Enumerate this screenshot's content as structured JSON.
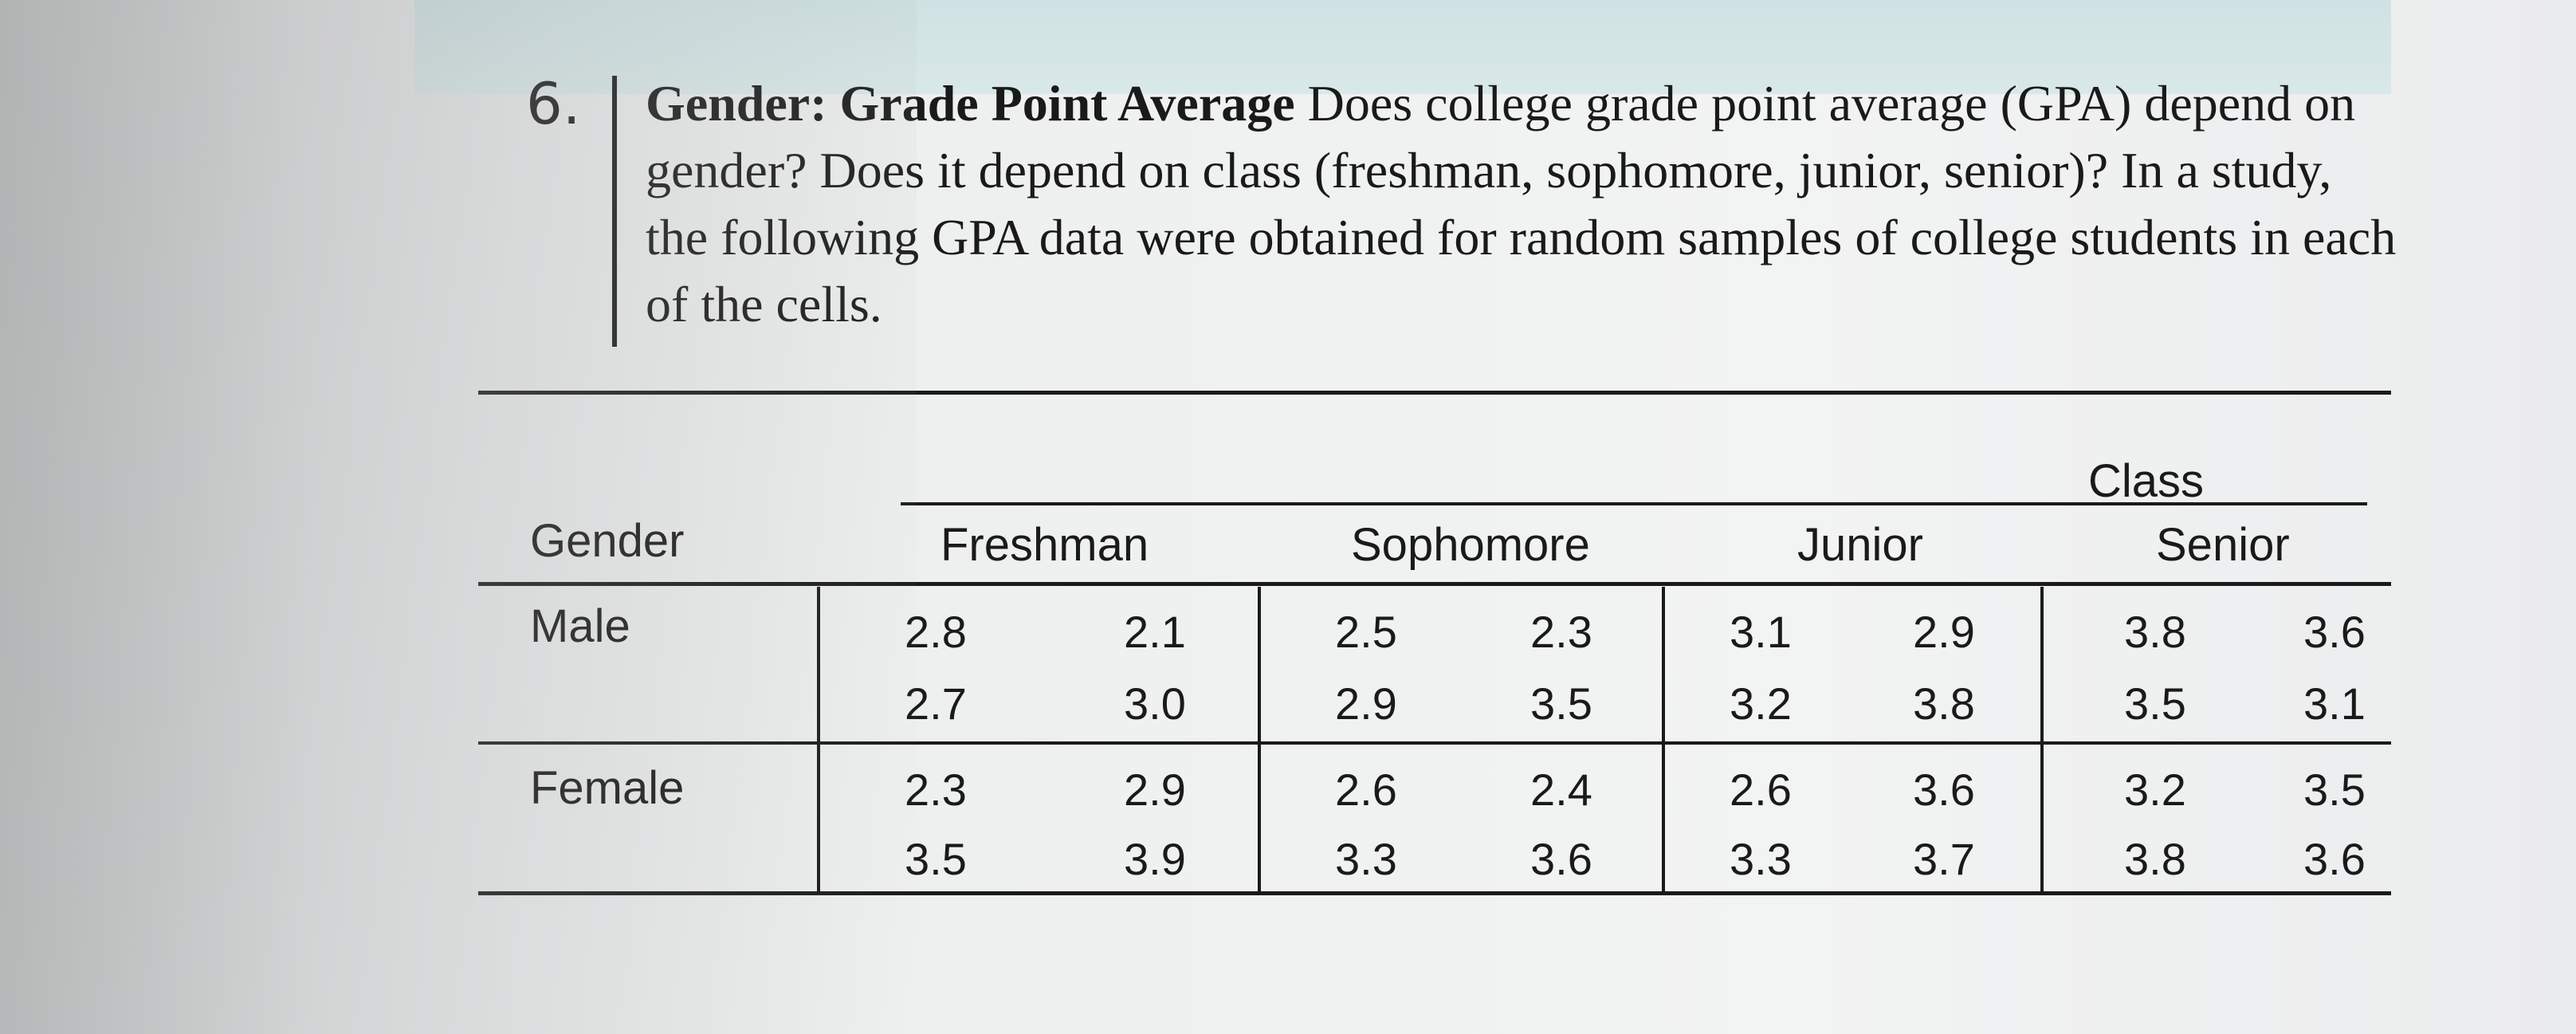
{
  "problem": {
    "number": "6.",
    "title": "Gender: Grade Point Average",
    "text": "Does college grade point average (GPA) depend on gender? Does it depend on class (freshman, sophomore, junior, senior)? In a study, the following GPA data were obtained for random samples of college students in each of the cells."
  },
  "table": {
    "group_header": "Class",
    "row_header": "Gender",
    "columns": [
      "Freshman",
      "Sophomore",
      "Junior",
      "Senior"
    ],
    "rows": [
      {
        "label": "Male",
        "cells": [
          [
            "2.8",
            "2.1",
            "2.7",
            "3.0"
          ],
          [
            "2.5",
            "2.3",
            "2.9",
            "3.5"
          ],
          [
            "3.1",
            "2.9",
            "3.2",
            "3.8"
          ],
          [
            "3.8",
            "3.6",
            "3.5",
            "3.1"
          ]
        ]
      },
      {
        "label": "Female",
        "cells": [
          [
            "2.3",
            "2.9",
            "3.5",
            "3.9"
          ],
          [
            "2.6",
            "2.4",
            "3.3",
            "3.6"
          ],
          [
            "2.6",
            "3.6",
            "3.3",
            "3.7"
          ],
          [
            "3.2",
            "3.5",
            "3.8",
            "3.6"
          ]
        ]
      }
    ]
  }
}
